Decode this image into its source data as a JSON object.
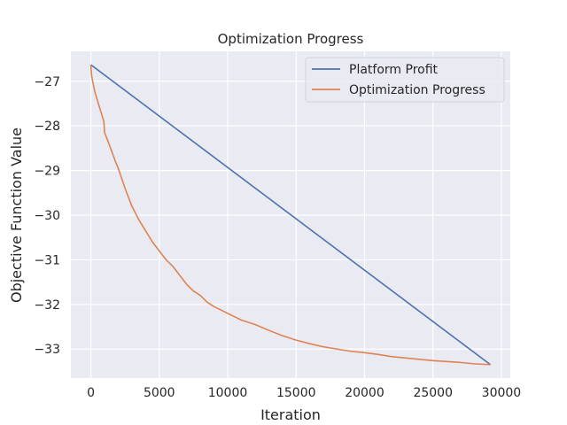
{
  "chart_data": {
    "type": "line",
    "title": "Optimization Progress",
    "xlabel": "Iteration",
    "ylabel": "Objective Function Value",
    "xlim": [
      -1460,
      30650
    ],
    "ylim": [
      -33.65,
      -26.33
    ],
    "xticks": [
      0,
      5000,
      10000,
      15000,
      20000,
      25000,
      30000
    ],
    "xtick_labels": [
      "0",
      "5000",
      "10000",
      "15000",
      "20000",
      "25000",
      "30000"
    ],
    "yticks": [
      -33,
      -32,
      -31,
      -30,
      -29,
      -28,
      -27
    ],
    "ytick_labels": [
      "−33",
      "−32",
      "−31",
      "−30",
      "−29",
      "−28",
      "−27"
    ],
    "grid": true,
    "legend_position": "top-right",
    "series": [
      {
        "name": "Platform Profit",
        "color": "#4c72b0",
        "x": [
          0,
          29200
        ],
        "y": [
          -26.63,
          -33.35
        ]
      },
      {
        "name": "Optimization Progress",
        "color": "#dd8452",
        "x": [
          0,
          50,
          100,
          200,
          300,
          450,
          600,
          800,
          950,
          1000,
          1200,
          1500,
          1800,
          2000,
          2500,
          3000,
          3500,
          4000,
          4500,
          5000,
          5500,
          6000,
          6500,
          7000,
          7500,
          8000,
          8500,
          9000,
          10000,
          11000,
          12000,
          13000,
          14000,
          15000,
          16000,
          17000,
          18000,
          19000,
          20000,
          21000,
          22000,
          23000,
          24000,
          25000,
          26000,
          27000,
          28000,
          29200
        ],
        "y": [
          -26.63,
          -26.85,
          -26.95,
          -27.1,
          -27.25,
          -27.4,
          -27.55,
          -27.75,
          -27.9,
          -28.15,
          -28.3,
          -28.55,
          -28.8,
          -28.95,
          -29.4,
          -29.8,
          -30.1,
          -30.35,
          -30.6,
          -30.8,
          -31.0,
          -31.15,
          -31.35,
          -31.55,
          -31.7,
          -31.8,
          -31.95,
          -32.05,
          -32.2,
          -32.35,
          -32.45,
          -32.58,
          -32.7,
          -32.8,
          -32.88,
          -32.95,
          -33.0,
          -33.05,
          -33.08,
          -33.12,
          -33.17,
          -33.2,
          -33.23,
          -33.26,
          -33.28,
          -33.3,
          -33.33,
          -33.35
        ]
      }
    ]
  }
}
